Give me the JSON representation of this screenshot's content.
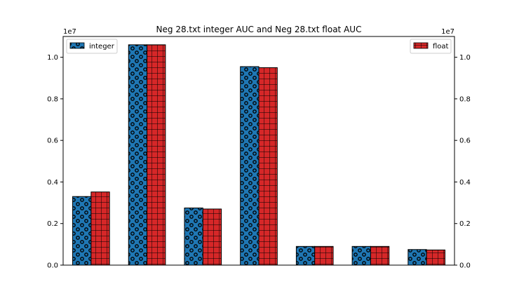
{
  "chart_data": {
    "type": "bar",
    "title": "Neg 28.txt integer AUC and Neg 28.txt float AUC",
    "xlabel": "",
    "ylabel": "",
    "categories": [
      "",
      "",
      "",
      "",
      "",
      "",
      ""
    ],
    "series": [
      {
        "name": "integer",
        "color": "#1f77b4",
        "hatch": "circles",
        "values": [
          3300000,
          10600000,
          2750000,
          9550000,
          900000,
          900000,
          750000
        ],
        "axis": "left"
      },
      {
        "name": "float",
        "color": "#d62728",
        "hatch": "grid",
        "values": [
          3520000,
          10600000,
          2700000,
          9500000,
          900000,
          900000,
          730000
        ],
        "axis": "right"
      }
    ],
    "ylim": [
      0,
      11000000
    ],
    "yticks": [
      0,
      2000000,
      4000000,
      6000000,
      8000000,
      10000000
    ],
    "ytick_labels": [
      "0.0",
      "0.2",
      "0.4",
      "0.6",
      "0.8",
      "1.0"
    ],
    "offset_label_left": "1e7",
    "offset_label_right": "1e7",
    "legend_left_placement": "upper-left",
    "legend_right_placement": "upper-right",
    "grid": false
  }
}
